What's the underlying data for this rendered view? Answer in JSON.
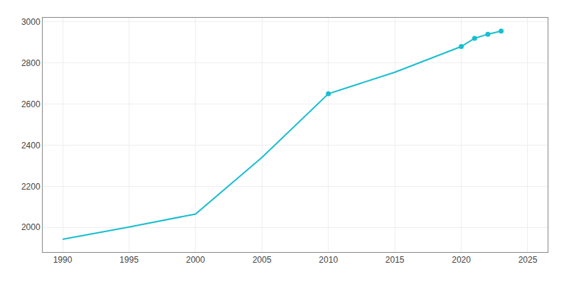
{
  "chart_data": {
    "type": "line",
    "x": [
      1990,
      1995,
      2000,
      2005,
      2010,
      2015,
      2020,
      2021,
      2022,
      2023
    ],
    "series": [
      {
        "type": "line",
        "color": "#17becf",
        "line_style": "solid",
        "values": [
          1942,
          2002,
          2065,
          2340,
          2650,
          2755,
          2880,
          2920,
          2940,
          2955
        ]
      },
      {
        "type": "scatter",
        "color": "#17becf",
        "marker": "circle",
        "values": [
          null,
          null,
          null,
          null,
          2650,
          null,
          2880,
          2920,
          2940,
          2955
        ]
      }
    ],
    "xlim": [
      1988.5,
      2026.5
    ],
    "ylim": [
      1880,
      3020
    ],
    "xticks": [
      1990,
      1995,
      2000,
      2005,
      2010,
      2015,
      2020,
      2025
    ],
    "yticks": [
      2000,
      2200,
      2400,
      2600,
      2800,
      3000
    ],
    "grid": true
  }
}
